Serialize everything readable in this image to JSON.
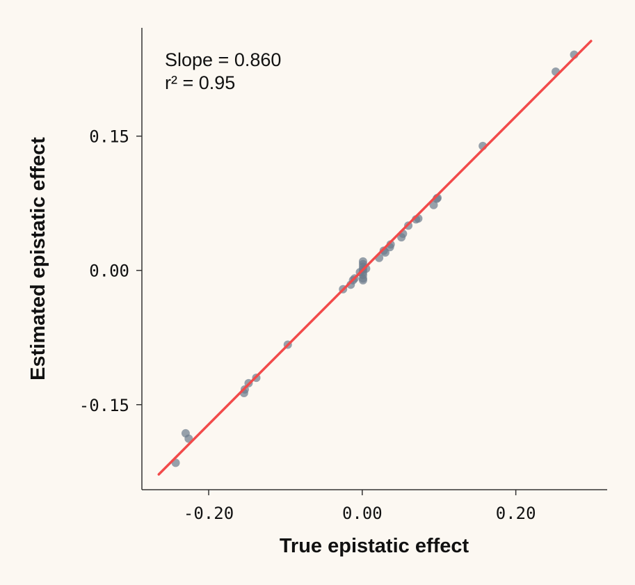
{
  "chart_data": {
    "type": "scatter",
    "xlabel": "True epistatic effect",
    "ylabel": "Estimated epistatic effect",
    "xlim": [
      -0.287,
      0.319
    ],
    "ylim": [
      -0.245,
      0.271
    ],
    "xticks": [
      {
        "value": -0.2,
        "label": "-0.20"
      },
      {
        "value": 0.0,
        "label": "0.00"
      },
      {
        "value": 0.2,
        "label": "0.20"
      }
    ],
    "yticks": [
      {
        "value": 0.15,
        "label": "0.15"
      },
      {
        "value": 0.0,
        "label": "0.00"
      },
      {
        "value": -0.15,
        "label": "-0.15"
      }
    ],
    "grid": false,
    "annotations": [
      "Slope = 0.860",
      "r² = 0.95"
    ],
    "fit_line": {
      "slope": 0.86,
      "intercept": 0.0,
      "x_range": [
        -0.265,
        0.298
      ],
      "color": "#f24a4a"
    },
    "point_color": "#6b7a8c",
    "points": [
      [
        -0.243,
        -0.215
      ],
      [
        -0.23,
        -0.182
      ],
      [
        -0.226,
        -0.188
      ],
      [
        -0.154,
        -0.137
      ],
      [
        -0.153,
        -0.133
      ],
      [
        -0.148,
        -0.126
      ],
      [
        -0.138,
        -0.12
      ],
      [
        -0.097,
        -0.083
      ],
      [
        -0.025,
        -0.021
      ],
      [
        -0.015,
        -0.016
      ],
      [
        -0.012,
        -0.011
      ],
      [
        -0.01,
        -0.009
      ],
      [
        0.001,
        0.01
      ],
      [
        0.001,
        0.007
      ],
      [
        0.001,
        0.004
      ],
      [
        0.001,
        0.001
      ],
      [
        0.001,
        -0.002
      ],
      [
        0.001,
        -0.005
      ],
      [
        0.001,
        -0.009
      ],
      [
        0.001,
        -0.011
      ],
      [
        -0.003,
        -0.002
      ],
      [
        0.005,
        0.002
      ],
      [
        0.022,
        0.014
      ],
      [
        0.028,
        0.022
      ],
      [
        0.03,
        0.02
      ],
      [
        0.036,
        0.026
      ],
      [
        0.037,
        0.029
      ],
      [
        0.051,
        0.037
      ],
      [
        0.053,
        0.041
      ],
      [
        0.06,
        0.05
      ],
      [
        0.07,
        0.057
      ],
      [
        0.073,
        0.058
      ],
      [
        0.093,
        0.073
      ],
      [
        0.097,
        0.08
      ],
      [
        0.098,
        0.081
      ],
      [
        0.157,
        0.139
      ],
      [
        0.252,
        0.222
      ],
      [
        0.276,
        0.241
      ]
    ]
  }
}
